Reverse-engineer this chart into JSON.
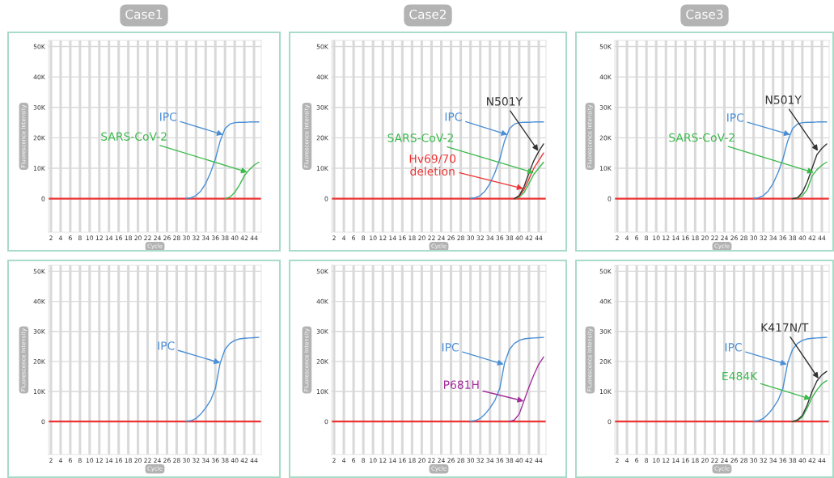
{
  "chart_data": [
    {
      "type": "line",
      "title": "Case1",
      "xlabel": "Cycle",
      "ylabel": "Fluorescence Intensity",
      "xlim": [
        1.5,
        45.5
      ],
      "ylim": [
        -11000,
        52000
      ],
      "xticks": [
        2,
        4,
        6,
        8,
        10,
        12,
        14,
        16,
        18,
        20,
        22,
        24,
        26,
        28,
        30,
        32,
        34,
        36,
        38,
        40,
        42,
        44
      ],
      "yticks": [
        0,
        {
          "value": 10000,
          "label": "10K"
        },
        {
          "value": 20000,
          "label": "20K"
        },
        {
          "value": 30000,
          "label": "30K"
        },
        {
          "value": 40000,
          "label": "40K"
        },
        {
          "value": 50000,
          "label": "50K"
        }
      ],
      "grid": true,
      "marker": "none",
      "line_style": "solid",
      "ref_lines": [
        {
          "axis": "y",
          "value": 0,
          "color": "#ee3333"
        }
      ],
      "series": [
        {
          "color": "#4a8fd6",
          "x": [
            30,
            31,
            32,
            33,
            34,
            35,
            36,
            37,
            38,
            39,
            40,
            41,
            42,
            43,
            44,
            45
          ],
          "values": [
            100,
            300,
            1000,
            2500,
            5000,
            8500,
            13000,
            19000,
            23000,
            24500,
            25000,
            25100,
            25100,
            25200,
            25200,
            25200
          ]
        },
        {
          "color": "#3cba4c",
          "x": [
            38,
            39,
            40,
            41,
            42,
            43,
            44,
            45
          ],
          "values": [
            0,
            500,
            2000,
            4500,
            7500,
            9500,
            11000,
            12000
          ]
        }
      ],
      "annotations": [
        {
          "text": "IPC",
          "x": 37.6,
          "y": 21000
        },
        {
          "text": "SARS-CoV-2",
          "x": 42.6,
          "y": 8700
        }
      ]
    },
    {
      "type": "line",
      "title": "Case2",
      "xlabel": "Cycle",
      "ylabel": "Fluorescence Intensity",
      "xlim": [
        1.5,
        45.5
      ],
      "ylim": [
        -11000,
        52000
      ],
      "xticks": [
        2,
        4,
        6,
        8,
        10,
        12,
        14,
        16,
        18,
        20,
        22,
        24,
        26,
        28,
        30,
        32,
        34,
        36,
        38,
        40,
        42,
        44
      ],
      "yticks": [
        0,
        {
          "value": 10000,
          "label": "10K"
        },
        {
          "value": 20000,
          "label": "20K"
        },
        {
          "value": 30000,
          "label": "30K"
        },
        {
          "value": 40000,
          "label": "40K"
        },
        {
          "value": 50000,
          "label": "50K"
        }
      ],
      "grid": true,
      "marker": "none",
      "line_style": "solid",
      "ref_lines": [
        {
          "axis": "y",
          "value": 0,
          "color": "#ee3333"
        }
      ],
      "series": [
        {
          "color": "#4a8fd6",
          "x": [
            30,
            31,
            32,
            33,
            34,
            35,
            36,
            37,
            38,
            39,
            40,
            41,
            42,
            43,
            44,
            45
          ],
          "values": [
            100,
            300,
            1000,
            2500,
            5000,
            8500,
            13000,
            19000,
            23000,
            24500,
            25000,
            25100,
            25100,
            25200,
            25200,
            25200
          ]
        },
        {
          "color": "#3cba4c",
          "x": [
            39,
            40,
            41,
            42,
            43,
            44,
            45
          ],
          "values": [
            0,
            500,
            2000,
            5000,
            8000,
            10000,
            12000
          ]
        },
        {
          "color": "#ee3333",
          "x": [
            39,
            40,
            41,
            42,
            43,
            44,
            45
          ],
          "values": [
            0,
            800,
            3000,
            6500,
            10000,
            12500,
            15000
          ]
        },
        {
          "color": "#333333",
          "x": [
            39,
            40,
            41,
            42,
            43,
            44,
            45
          ],
          "values": [
            0,
            1000,
            4000,
            8500,
            12500,
            15500,
            18000
          ]
        }
      ],
      "annotations": [
        {
          "text": "IPC",
          "x": 37.6,
          "y": 21000
        },
        {
          "text": "SARS-CoV-2",
          "x": 43.0,
          "y": 8500
        },
        {
          "text": "Hv69/70\ndeletion",
          "x": 40.8,
          "y": 3300
        },
        {
          "text": "N501Y",
          "x": 43.9,
          "y": 15700
        }
      ]
    },
    {
      "type": "line",
      "title": "Case3",
      "xlabel": "Cycle",
      "ylabel": "Fluorescence Intensity",
      "xlim": [
        1.5,
        45.5
      ],
      "ylim": [
        -11000,
        52000
      ],
      "xticks": [
        2,
        4,
        6,
        8,
        10,
        12,
        14,
        16,
        18,
        20,
        22,
        24,
        26,
        28,
        30,
        32,
        34,
        36,
        38,
        40,
        42,
        44
      ],
      "yticks": [
        0,
        {
          "value": 10000,
          "label": "10K"
        },
        {
          "value": 20000,
          "label": "20K"
        },
        {
          "value": 30000,
          "label": "30K"
        },
        {
          "value": 40000,
          "label": "40K"
        },
        {
          "value": 50000,
          "label": "50K"
        }
      ],
      "grid": true,
      "marker": "none",
      "line_style": "solid",
      "ref_lines": [
        {
          "axis": "y",
          "value": 0,
          "color": "#ee3333"
        }
      ],
      "series": [
        {
          "color": "#4a8fd6",
          "x": [
            30,
            31,
            32,
            33,
            34,
            35,
            36,
            37,
            38,
            39,
            40,
            41,
            42,
            43,
            44,
            45
          ],
          "values": [
            100,
            300,
            1000,
            2500,
            5000,
            8500,
            13000,
            19000,
            23000,
            24500,
            25000,
            25100,
            25100,
            25200,
            25200,
            25200
          ]
        },
        {
          "color": "#3cba4c",
          "x": [
            38,
            39,
            40,
            41,
            42,
            43,
            44,
            45
          ],
          "values": [
            0,
            200,
            1000,
            3000,
            7500,
            9500,
            11000,
            12000
          ]
        },
        {
          "color": "#333333",
          "x": [
            38,
            39,
            40,
            41,
            42,
            43,
            44,
            45
          ],
          "values": [
            0,
            300,
            2000,
            5500,
            10000,
            14500,
            16500,
            18000
          ]
        }
      ],
      "annotations": [
        {
          "text": "IPC",
          "x": 37.5,
          "y": 21000
        },
        {
          "text": "SARS-CoV-2",
          "x": 42.3,
          "y": 8600
        },
        {
          "text": "N501Y",
          "x": 43.2,
          "y": 15700
        }
      ]
    },
    {
      "type": "line",
      "xlabel": "Cycle",
      "ylabel": "Fluorescence Intensity",
      "xlim": [
        1.5,
        45.5
      ],
      "ylim": [
        -11000,
        52000
      ],
      "xticks": [
        2,
        4,
        6,
        8,
        10,
        12,
        14,
        16,
        18,
        20,
        22,
        24,
        26,
        28,
        30,
        32,
        34,
        36,
        38,
        40,
        42,
        44
      ],
      "yticks": [
        0,
        {
          "value": 10000,
          "label": "10K"
        },
        {
          "value": 20000,
          "label": "20K"
        },
        {
          "value": 30000,
          "label": "30K"
        },
        {
          "value": 40000,
          "label": "40K"
        },
        {
          "value": 50000,
          "label": "50K"
        }
      ],
      "grid": true,
      "marker": "none",
      "line_style": "solid",
      "ref_lines": [
        {
          "axis": "y",
          "value": 0,
          "color": "#ee3333"
        }
      ],
      "series": [
        {
          "color": "#4a8fd6",
          "x": [
            30,
            31,
            32,
            33,
            34,
            35,
            36,
            37,
            38,
            39,
            40,
            41,
            42,
            43,
            44,
            45
          ],
          "values": [
            100,
            300,
            1000,
            2500,
            4500,
            7000,
            11000,
            19500,
            24000,
            26000,
            27000,
            27500,
            27700,
            27800,
            27900,
            28000
          ]
        }
      ],
      "annotations": [
        {
          "text": "IPC",
          "x": 37.0,
          "y": 19500
        }
      ]
    },
    {
      "type": "line",
      "xlabel": "Cycle",
      "ylabel": "Fluorescence Intensity",
      "xlim": [
        1.5,
        45.5
      ],
      "ylim": [
        -11000,
        52000
      ],
      "xticks": [
        2,
        4,
        6,
        8,
        10,
        12,
        14,
        16,
        18,
        20,
        22,
        24,
        26,
        28,
        30,
        32,
        34,
        36,
        38,
        40,
        42,
        44
      ],
      "yticks": [
        0,
        {
          "value": 10000,
          "label": "10K"
        },
        {
          "value": 20000,
          "label": "20K"
        },
        {
          "value": 30000,
          "label": "30K"
        },
        {
          "value": 40000,
          "label": "40K"
        },
        {
          "value": 50000,
          "label": "50K"
        }
      ],
      "grid": true,
      "marker": "none",
      "line_style": "solid",
      "ref_lines": [
        {
          "axis": "y",
          "value": 0,
          "color": "#ee3333"
        }
      ],
      "series": [
        {
          "color": "#4a8fd6",
          "x": [
            30,
            31,
            32,
            33,
            34,
            35,
            36,
            37,
            38,
            39,
            40,
            41,
            42,
            43,
            44,
            45
          ],
          "values": [
            100,
            300,
            1000,
            2500,
            4500,
            7000,
            11000,
            19500,
            24000,
            26000,
            27000,
            27500,
            27700,
            27800,
            27900,
            28000
          ]
        },
        {
          "color": "#a3309c",
          "x": [
            38,
            39,
            40,
            41,
            42,
            43,
            44,
            45
          ],
          "values": [
            0,
            500,
            2500,
            7000,
            11500,
            15500,
            19000,
            21500
          ]
        }
      ],
      "annotations": [
        {
          "text": "IPC",
          "x": 36.8,
          "y": 19000
        },
        {
          "text": "P681H",
          "x": 40.9,
          "y": 6800
        }
      ]
    },
    {
      "type": "line",
      "xlabel": "Cycle",
      "ylabel": "Fluorescence Intensity",
      "xlim": [
        1.5,
        45.5
      ],
      "ylim": [
        -11000,
        52000
      ],
      "xticks": [
        2,
        4,
        6,
        8,
        10,
        12,
        14,
        16,
        18,
        20,
        22,
        24,
        26,
        28,
        30,
        32,
        34,
        36,
        38,
        40,
        42,
        44
      ],
      "yticks": [
        0,
        {
          "value": 10000,
          "label": "10K"
        },
        {
          "value": 20000,
          "label": "20K"
        },
        {
          "value": 30000,
          "label": "30K"
        },
        {
          "value": 40000,
          "label": "40K"
        },
        {
          "value": 50000,
          "label": "50K"
        }
      ],
      "grid": true,
      "marker": "none",
      "line_style": "solid",
      "ref_lines": [
        {
          "axis": "y",
          "value": 0,
          "color": "#ee3333"
        }
      ],
      "series": [
        {
          "color": "#4a8fd6",
          "x": [
            30,
            31,
            32,
            33,
            34,
            35,
            36,
            37,
            38,
            39,
            40,
            41,
            42,
            43,
            44,
            45
          ],
          "values": [
            100,
            300,
            1000,
            2500,
            4500,
            7000,
            11000,
            19500,
            24000,
            26000,
            27000,
            27500,
            27700,
            27800,
            27900,
            28000
          ]
        },
        {
          "color": "#3cba4c",
          "x": [
            38,
            39,
            40,
            41,
            42,
            43,
            44,
            45
          ],
          "values": [
            0,
            300,
            1500,
            4500,
            8000,
            10500,
            12500,
            13600
          ]
        },
        {
          "color": "#333333",
          "x": [
            38,
            39,
            40,
            41,
            42,
            43,
            44,
            45
          ],
          "values": [
            0,
            500,
            2000,
            5500,
            10000,
            13500,
            15500,
            16700
          ]
        }
      ],
      "annotations": [
        {
          "text": "IPC",
          "x": 36.8,
          "y": 19000
        },
        {
          "text": "E484K",
          "x": 41.7,
          "y": 7500
        },
        {
          "text": "K417N/T",
          "x": 43.3,
          "y": 14300
        }
      ]
    }
  ]
}
